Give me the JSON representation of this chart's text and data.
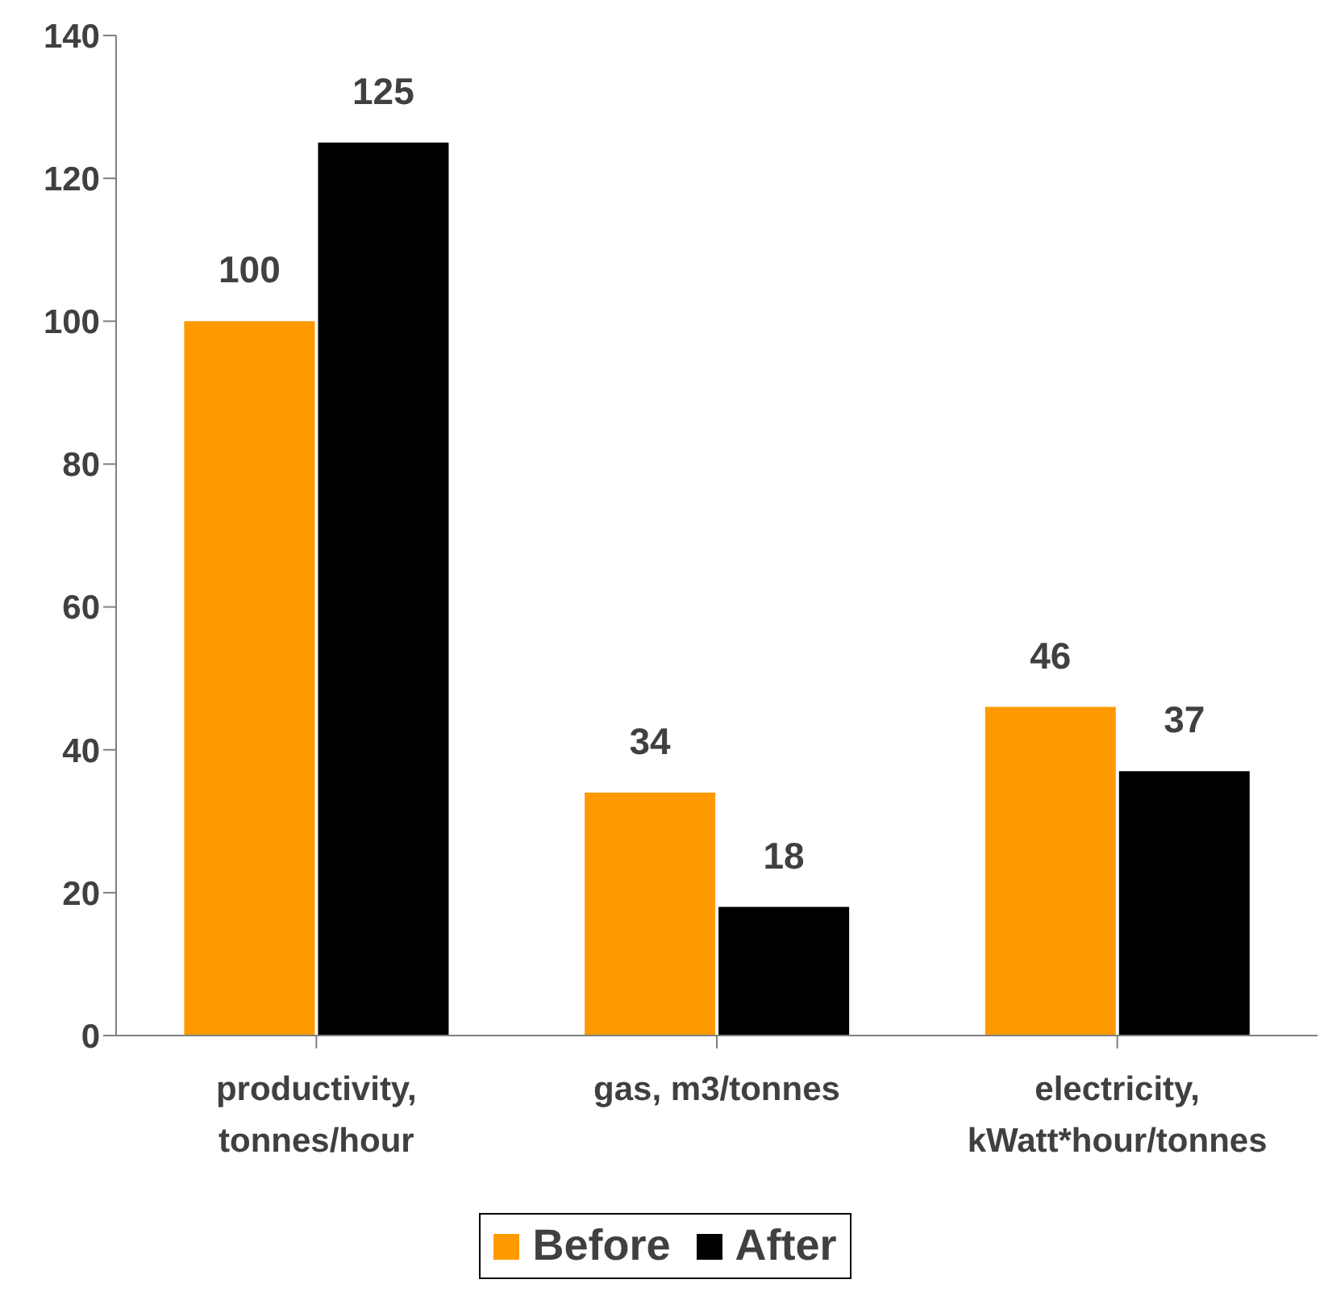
{
  "chart_data": {
    "type": "bar",
    "categories": [
      "productivity, tonnes/hour",
      "gas, m3/tonnes",
      "electricity, kWatt*hour/tonnes"
    ],
    "series": [
      {
        "name": "Before",
        "color": "#ff9900",
        "values": [
          100,
          34,
          46
        ]
      },
      {
        "name": "After",
        "color": "#000000",
        "values": [
          125,
          18,
          37
        ]
      }
    ],
    "ylim": [
      0,
      140
    ],
    "yticks": [
      0,
      20,
      40,
      60,
      80,
      100,
      120,
      140
    ],
    "grid": false,
    "legend": "bottom",
    "data_labels": true
  }
}
